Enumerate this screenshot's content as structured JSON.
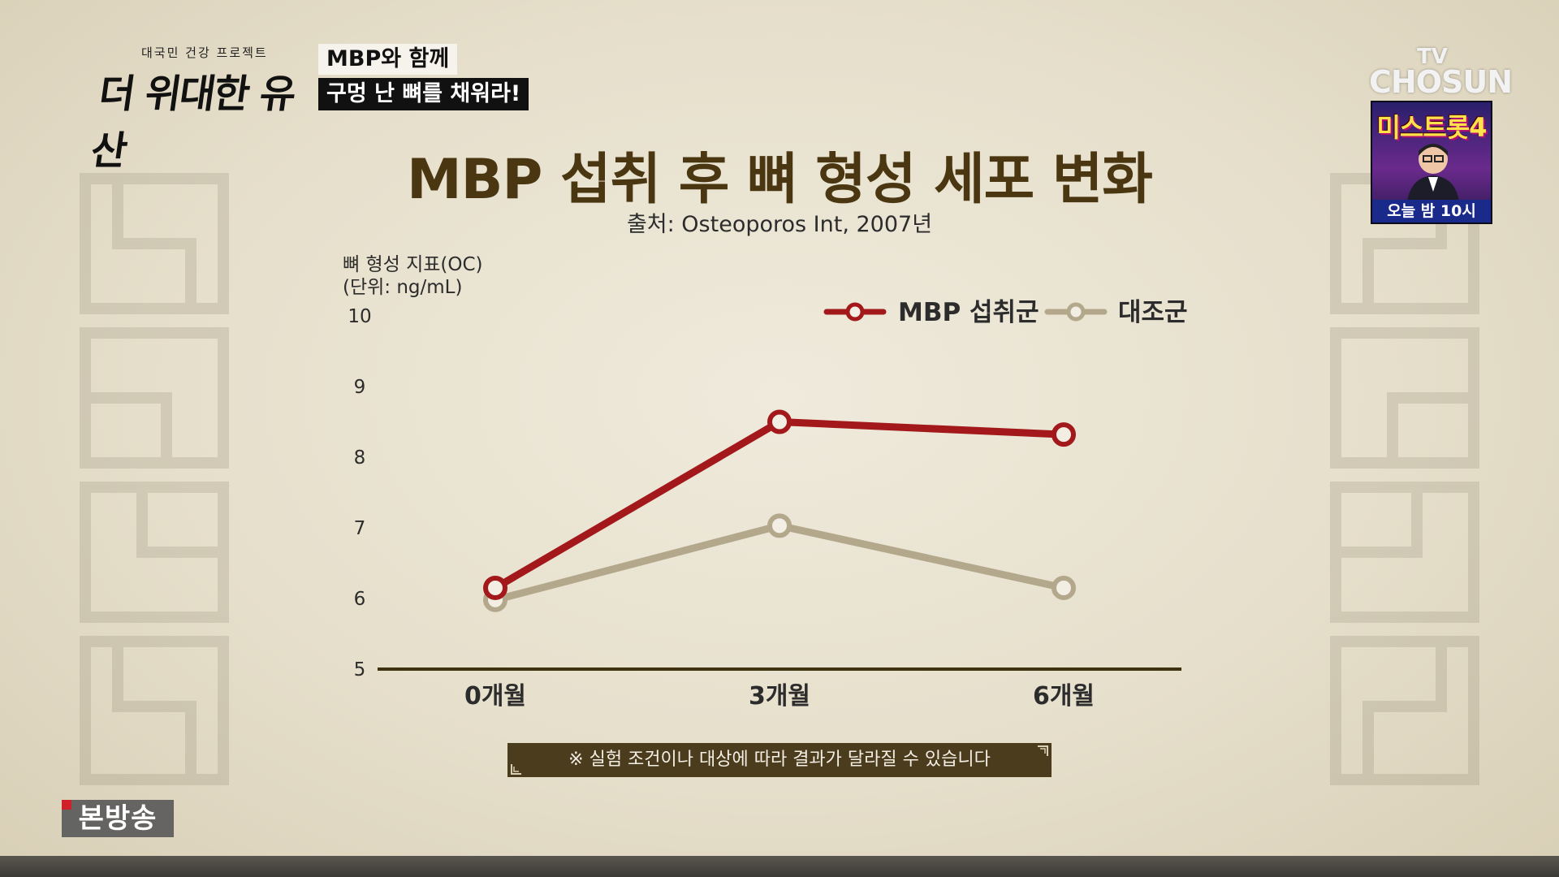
{
  "show": {
    "logo_small": "대국민 건강 프로젝트",
    "logo_main": "더 위대한 유산",
    "caption_line1": "MBP와 함께",
    "caption_line2": "구멍 난 뼈를 채워라!"
  },
  "channel": {
    "tv": "TV",
    "name": "CHOSUN"
  },
  "promo": {
    "title": "미스트롯4",
    "time": "오늘 밤 10시"
  },
  "chart_data": {
    "type": "line",
    "title": "MBP 섭취 후 뼈 형성 세포 변화",
    "subtitle": "출처: Osteoporos Int, 2007년",
    "ylabel_line1": "뼈 형성 지표(OC)",
    "ylabel_line2": "(단위: ng/mL)",
    "categories": [
      "0개월",
      "3개월",
      "6개월"
    ],
    "ylim": [
      5,
      10
    ],
    "yticks": [
      5,
      6,
      7,
      8,
      9,
      10
    ],
    "grid": false,
    "legend_position": "top-right",
    "series": [
      {
        "name": "MBP 섭취군",
        "values": [
          6.15,
          8.5,
          8.32
        ],
        "color": "#a3191b"
      },
      {
        "name": "대조군",
        "values": [
          5.98,
          7.03,
          6.15
        ],
        "color": "#b3a88b"
      }
    ],
    "axis_color": "#3f3211"
  },
  "note": "※ 실험 조건이나 대상에 따라 결과가 달라질 수 있습니다",
  "badge": "본방송"
}
